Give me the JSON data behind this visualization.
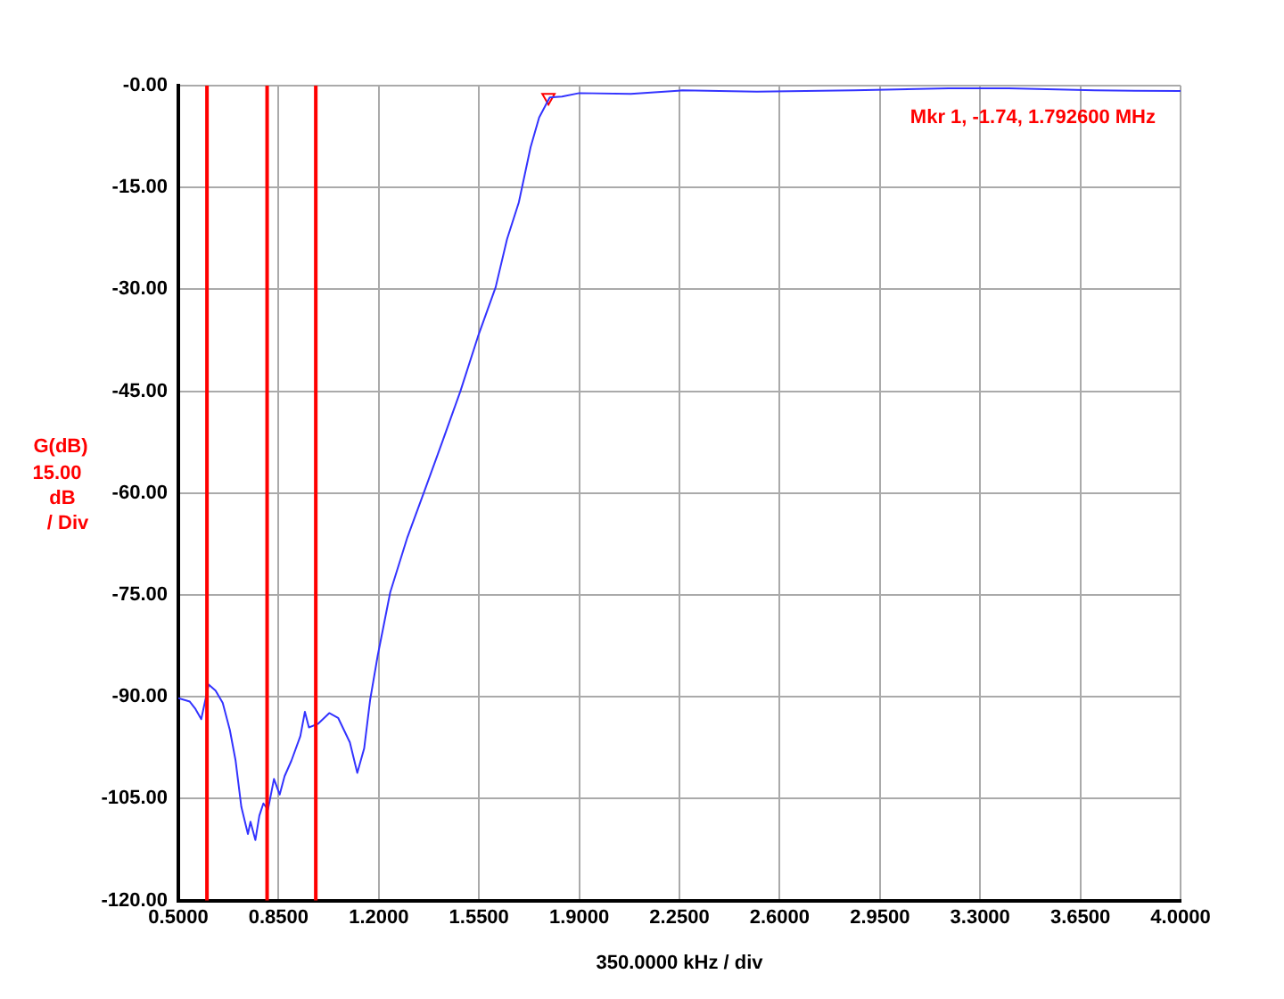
{
  "chart_data": {
    "type": "line",
    "ylabel": "G(dB)",
    "xlabel": "350.0000 kHz / div",
    "annotations": [
      "15.00 dB / Div",
      "Mkr 1, -1.74, 1.792600 MHz"
    ],
    "xlim": [
      0.5,
      4.0
    ],
    "xticks": [
      {
        "value": 0.5,
        "label": "0.5000"
      },
      {
        "value": 0.85,
        "label": "0.8500"
      },
      {
        "value": 1.2,
        "label": "1.2000"
      },
      {
        "value": 1.55,
        "label": "1.5500"
      },
      {
        "value": 1.9,
        "label": "1.9000"
      },
      {
        "value": 2.25,
        "label": "2.2500"
      },
      {
        "value": 2.6,
        "label": "2.6000"
      },
      {
        "value": 2.95,
        "label": "2.9500"
      },
      {
        "value": 3.3,
        "label": "3.3000"
      },
      {
        "value": 3.65,
        "label": "3.6500"
      },
      {
        "value": 4.0,
        "label": "4.0000"
      }
    ],
    "ylim": [
      -120,
      0
    ],
    "yticks": [
      {
        "value": -120,
        "label": "-120.00"
      },
      {
        "value": -105,
        "label": "-105.00"
      },
      {
        "value": -90,
        "label": "-90.00"
      },
      {
        "value": -75,
        "label": "-75.00"
      },
      {
        "value": -60,
        "label": "-60.00"
      },
      {
        "value": -45,
        "label": "-45.00"
      },
      {
        "value": -30,
        "label": "-30.00"
      },
      {
        "value": -15,
        "label": "-15.00"
      },
      {
        "value": 0,
        "label": "-0.00"
      }
    ],
    "grid": true,
    "legend": false,
    "ref_lines": [
      {
        "axis": "x",
        "value": 0.6,
        "color": "#ff0000"
      },
      {
        "axis": "x",
        "value": 0.81,
        "color": "#ff0000"
      },
      {
        "axis": "x",
        "value": 0.98,
        "color": "#ff0000"
      }
    ],
    "series": [
      {
        "color": "#3333ff",
        "marker": "none",
        "x": [
          0.5,
          0.54,
          0.56,
          0.58,
          0.606,
          0.63,
          0.655,
          0.68,
          0.7,
          0.72,
          0.743,
          0.752,
          0.769,
          0.783,
          0.797,
          0.813,
          0.834,
          0.854,
          0.871,
          0.895,
          0.926,
          0.942,
          0.956,
          0.987,
          1.027,
          1.058,
          1.099,
          1.125,
          1.149,
          1.17,
          1.196,
          1.24,
          1.3,
          1.363,
          1.424,
          1.485,
          1.546,
          1.608,
          1.648,
          1.689,
          1.73,
          1.76,
          1.797,
          1.84,
          1.9,
          2.08,
          2.26,
          2.52,
          2.86,
          3.19,
          3.4,
          3.7,
          4.0
        ],
        "values": [
          -90.2,
          -90.7,
          -91.8,
          -93.3,
          -88.2,
          -89.1,
          -90.9,
          -94.9,
          -99.4,
          -106.2,
          -110.2,
          -108.4,
          -111.1,
          -107.5,
          -105.7,
          -106.6,
          -102.1,
          -104.4,
          -101.7,
          -99.4,
          -95.8,
          -92.2,
          -94.5,
          -94,
          -92.4,
          -93.1,
          -96.7,
          -101.2,
          -97.6,
          -90.4,
          -84,
          -74.6,
          -66.5,
          -59.3,
          -52.2,
          -45,
          -37,
          -29.7,
          -22.6,
          -17.2,
          -9.1,
          -4.7,
          -1.74,
          -1.6,
          -1.1,
          -1.2,
          -0.7,
          -0.9,
          -0.7,
          -0.4,
          -0.4,
          -0.7,
          -0.8
        ]
      },
      {
        "type": "scatter",
        "color": "#ff0000",
        "marker": "triangle",
        "x": [
          1.7926
        ],
        "values": [
          -1.74
        ]
      }
    ]
  }
}
